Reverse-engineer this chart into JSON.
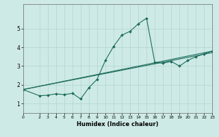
{
  "title": "",
  "xlabel": "Humidex (Indice chaleur)",
  "ylabel": "",
  "bg_color": "#ceeae6",
  "grid_color": "#b0d4d0",
  "line_color": "#1a6b5a",
  "xlim": [
    0,
    23
  ],
  "ylim": [
    0.5,
    6.3
  ],
  "xticks": [
    0,
    2,
    3,
    4,
    5,
    6,
    7,
    8,
    9,
    10,
    11,
    12,
    13,
    14,
    15,
    16,
    17,
    18,
    19,
    20,
    21,
    22,
    23
  ],
  "yticks": [
    1,
    2,
    3,
    4,
    5
  ],
  "line1_x": [
    0,
    2,
    3,
    4,
    5,
    6,
    7,
    8,
    9,
    10,
    11,
    12,
    13,
    14,
    15,
    16,
    17,
    18,
    19,
    20,
    21,
    22,
    23
  ],
  "line1_y": [
    1.75,
    1.42,
    1.45,
    1.52,
    1.48,
    1.55,
    1.25,
    1.85,
    2.3,
    3.3,
    4.05,
    4.65,
    4.85,
    5.25,
    5.55,
    3.2,
    3.15,
    3.25,
    3.0,
    3.3,
    3.5,
    3.65,
    3.8
  ],
  "line2_x": [
    0,
    23
  ],
  "line2_y": [
    1.75,
    3.8
  ],
  "line3_x": [
    0,
    23
  ],
  "line3_y": [
    1.75,
    3.72
  ]
}
